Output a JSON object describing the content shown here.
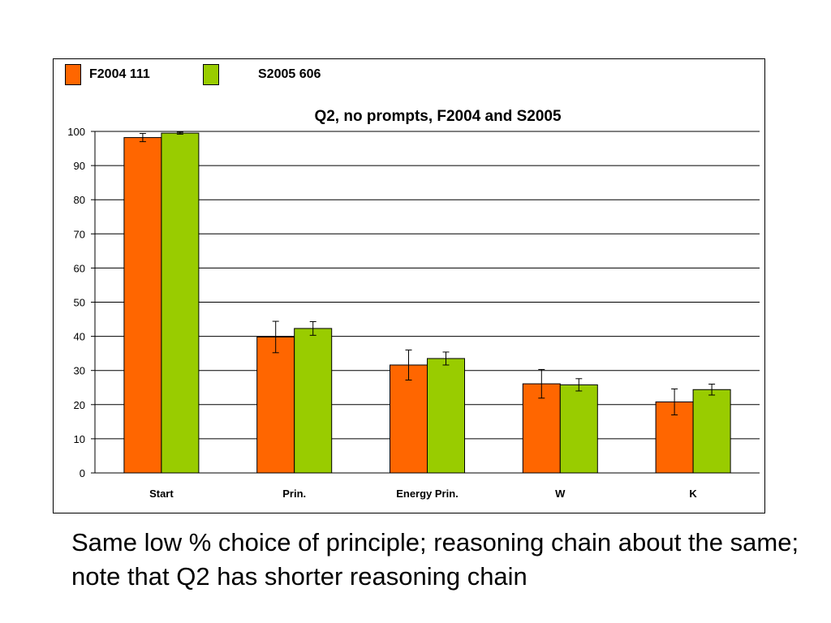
{
  "chart_data": {
    "type": "bar",
    "title": "Q2, no prompts, F2004 and S2005",
    "categories": [
      "Start",
      "Prin.",
      "Energy Prin.",
      "W",
      "K"
    ],
    "series": [
      {
        "name": "F2004 111",
        "color": "#ff6600",
        "values": [
          98.2,
          39.8,
          31.6,
          26.1,
          20.8
        ],
        "errors": [
          1.2,
          4.6,
          4.4,
          4.2,
          3.8
        ]
      },
      {
        "name": "S2005 606",
        "color": "#99cc00",
        "values": [
          99.5,
          42.3,
          33.5,
          25.8,
          24.4
        ],
        "errors": [
          0.3,
          2.0,
          1.9,
          1.8,
          1.6
        ]
      }
    ],
    "yticks": [
      "0",
      "10",
      "20",
      "30",
      "40",
      "50",
      "60",
      "70",
      "80",
      "90",
      "100"
    ],
    "ylim": [
      0,
      100
    ],
    "grid": true,
    "legend_position": "top-left"
  },
  "caption": "Same low % choice of principle; reasoning chain about the same; note that Q2 has shorter reasoning chain"
}
